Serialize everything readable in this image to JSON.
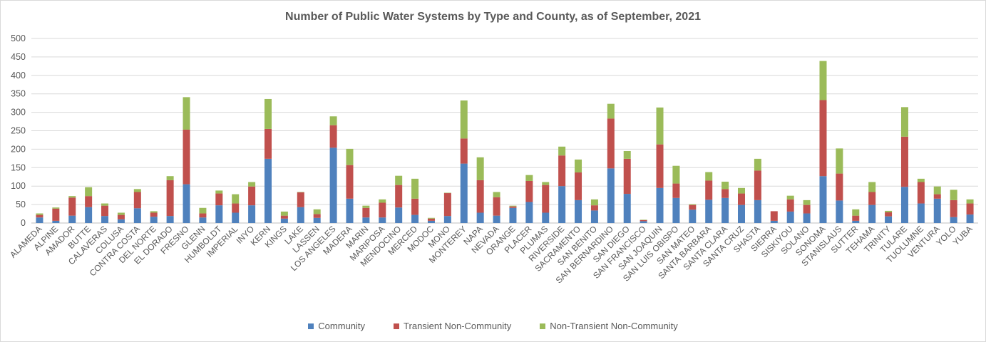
{
  "chart_data": {
    "type": "bar",
    "stacked": true,
    "title": "Number of Public Water Systems by Type and County, as of September, 2021",
    "xlabel": "",
    "ylabel": "",
    "ylim": [
      0,
      500
    ],
    "yticks": [
      0,
      50,
      100,
      150,
      200,
      250,
      300,
      350,
      400,
      450,
      500
    ],
    "grid": true,
    "legend_position": "bottom",
    "categories": [
      "ALAMEDA",
      "ALPINE",
      "AMADOR",
      "BUTTE",
      "CALAVERAS",
      "COLUSA",
      "CONTRA COSTA",
      "DEL NORTE",
      "EL DORADO",
      "FRESNO",
      "GLENN",
      "HUMBOLDT",
      "IMPERIAL",
      "INYO",
      "KERN",
      "KINGS",
      "LAKE",
      "LASSEN",
      "LOS ANGELES",
      "MADERA",
      "MARIN",
      "MARIPOSA",
      "MENDOCINO",
      "MERCED",
      "MODOC",
      "MONO",
      "MONTEREY",
      "NAPA",
      "NEVADA",
      "ORANGE",
      "PLACER",
      "PLUMAS",
      "RIVERSIDE",
      "SACRAMENTO",
      "SAN BENITO",
      "SAN BERNARDINO",
      "SAN DIEGO",
      "SAN FRANCISCO",
      "SAN JOAQUIN",
      "SAN LUIS OBISPO",
      "SAN MATEO",
      "SANTA BARBARA",
      "SANTA CLARA",
      "SANTA CRUZ",
      "SHASTA",
      "SIERRA",
      "SISKIYOU",
      "SOLANO",
      "SONOMA",
      "STANISLAUS",
      "SUTTER",
      "TEHAMA",
      "TRINITY",
      "TULARE",
      "TUOLUMNE",
      "VENTURA",
      "YOLO",
      "YUBA"
    ],
    "series": [
      {
        "name": "Community",
        "color": "#4f81bd",
        "values": [
          15,
          6,
          20,
          43,
          19,
          10,
          40,
          17,
          19,
          105,
          15,
          48,
          28,
          48,
          174,
          12,
          43,
          14,
          204,
          66,
          15,
          15,
          42,
          22,
          6,
          19,
          161,
          28,
          20,
          41,
          57,
          28,
          100,
          62,
          34,
          148,
          79,
          5,
          95,
          68,
          36,
          63,
          68,
          49,
          62,
          6,
          31,
          26,
          127,
          61,
          6,
          49,
          18,
          98,
          53,
          66,
          16,
          23
        ]
      },
      {
        "name": "Transient Non-Community",
        "color": "#c0504d",
        "values": [
          7,
          33,
          49,
          30,
          28,
          12,
          44,
          11,
          97,
          148,
          11,
          32,
          25,
          51,
          81,
          8,
          40,
          10,
          61,
          91,
          26,
          40,
          61,
          44,
          6,
          62,
          68,
          88,
          50,
          4,
          57,
          75,
          83,
          75,
          14,
          135,
          95,
          3,
          118,
          39,
          13,
          52,
          24,
          31,
          80,
          26,
          33,
          23,
          206,
          73,
          14,
          35,
          11,
          136,
          58,
          12,
          46,
          30
        ]
      },
      {
        "name": "Non-Transient Non-Community",
        "color": "#9bbb59",
        "values": [
          4,
          3,
          4,
          24,
          6,
          6,
          8,
          4,
          11,
          88,
          15,
          8,
          25,
          12,
          81,
          11,
          1,
          13,
          24,
          44,
          6,
          9,
          25,
          54,
          2,
          1,
          103,
          62,
          14,
          2,
          16,
          8,
          24,
          35,
          16,
          40,
          21,
          1,
          100,
          48,
          2,
          23,
          20,
          15,
          32,
          0,
          10,
          13,
          106,
          68,
          17,
          27,
          4,
          80,
          9,
          21,
          28,
          11
        ]
      }
    ]
  }
}
